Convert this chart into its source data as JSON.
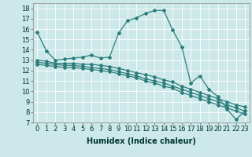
{
  "xlabel": "Humidex (Indice chaleur)",
  "bg_color": "#cce8e8",
  "grid_color": "#ffffff",
  "line_color": "#2d7d7d",
  "xlim": [
    -0.5,
    23.5
  ],
  "ylim": [
    7,
    18.5
  ],
  "yticks": [
    7,
    8,
    9,
    10,
    11,
    12,
    13,
    14,
    15,
    16,
    17,
    18
  ],
  "xticks": [
    0,
    1,
    2,
    3,
    4,
    5,
    6,
    7,
    8,
    9,
    10,
    11,
    12,
    13,
    14,
    15,
    16,
    17,
    18,
    19,
    20,
    21,
    22,
    23
  ],
  "lines": [
    [
      15.7,
      13.9,
      13.0,
      13.1,
      13.2,
      13.3,
      13.5,
      13.2,
      13.3,
      15.6,
      16.8,
      17.1,
      17.5,
      17.8,
      17.8,
      15.9,
      14.3,
      10.8,
      11.5,
      10.2,
      9.5,
      8.3,
      7.3,
      8.1
    ],
    [
      13.0,
      12.9,
      12.7,
      12.7,
      12.7,
      12.6,
      12.6,
      12.5,
      12.4,
      12.2,
      12.0,
      11.8,
      11.6,
      11.4,
      11.1,
      10.9,
      10.5,
      10.2,
      9.9,
      9.6,
      9.3,
      9.0,
      8.7,
      8.5
    ],
    [
      12.8,
      12.7,
      12.6,
      12.5,
      12.5,
      12.4,
      12.3,
      12.2,
      12.1,
      11.9,
      11.7,
      11.5,
      11.2,
      11.0,
      10.8,
      10.5,
      10.2,
      9.9,
      9.6,
      9.3,
      9.0,
      8.7,
      8.4,
      8.1
    ],
    [
      12.6,
      12.5,
      12.4,
      12.3,
      12.3,
      12.2,
      12.1,
      12.0,
      11.9,
      11.7,
      11.5,
      11.3,
      11.0,
      10.8,
      10.5,
      10.3,
      9.9,
      9.6,
      9.3,
      9.0,
      8.7,
      8.4,
      8.1,
      7.8
    ]
  ],
  "marker": "D",
  "marker_size": 2.0,
  "line_width": 0.9,
  "font_size_label": 7,
  "font_size_tick": 6
}
